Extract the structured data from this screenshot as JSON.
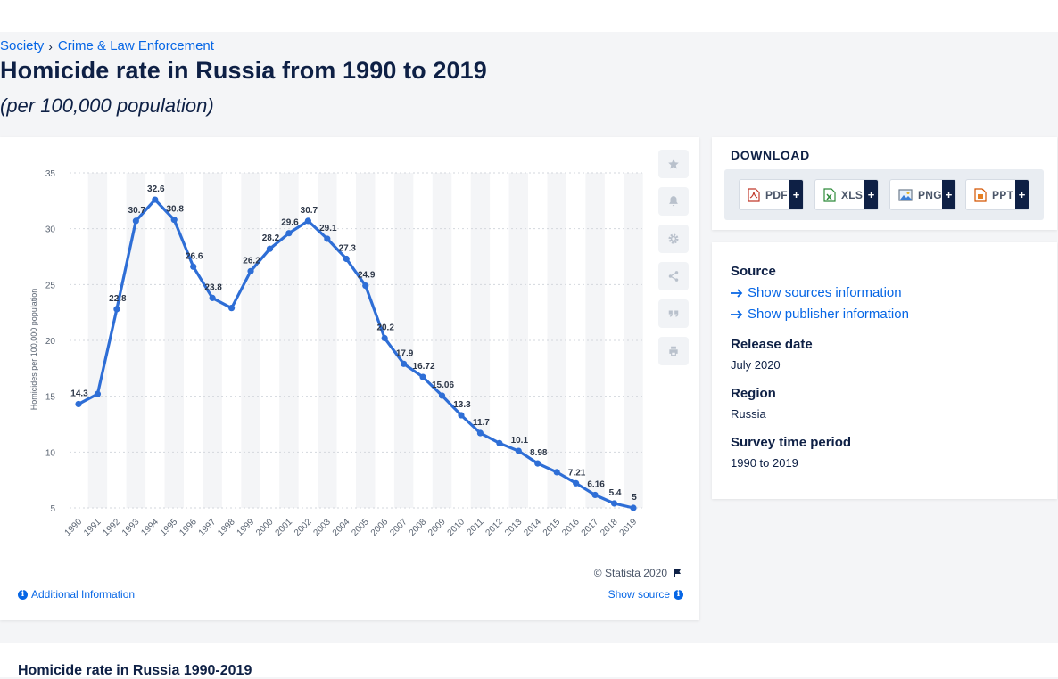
{
  "breadcrumb": {
    "items": [
      "Society",
      "Crime & Law Enforcement"
    ],
    "separator": "›"
  },
  "page": {
    "title": "Homicide rate in Russia from 1990 to 2019",
    "subtitle": "(per 100,000 population)"
  },
  "chart_card": {
    "copyright": "© Statista 2020",
    "additional_info": "Additional Information",
    "show_source": "Show source"
  },
  "toolbar": {
    "icons": [
      "star-icon",
      "bell-icon",
      "gear-icon",
      "share-icon",
      "quote-icon",
      "print-icon"
    ]
  },
  "download": {
    "title": "DOWNLOAD",
    "buttons": [
      {
        "label": "PDF",
        "plus": "+"
      },
      {
        "label": "XLS",
        "plus": "+"
      },
      {
        "label": "PNG",
        "plus": "+"
      },
      {
        "label": "PPT",
        "plus": "+"
      }
    ]
  },
  "info": {
    "source_label": "Source",
    "show_sources": "Show sources information",
    "show_publisher": "Show publisher information",
    "release_label": "Release date",
    "release_value": "July 2020",
    "region_label": "Region",
    "region_value": "Russia",
    "survey_label": "Survey time period",
    "survey_value": "1990 to 2019"
  },
  "bottom": {
    "title": "Homicide rate in Russia 1990-2019"
  },
  "colors": {
    "accent": "#0666e5",
    "line": "#2e6ed6",
    "navy": "#0e2045"
  },
  "chart_data": {
    "type": "line",
    "ylabel": "Homicides per 100,000 population",
    "xlabel": "",
    "ylim": [
      5,
      35
    ],
    "yticks": [
      5,
      10,
      15,
      20,
      25,
      30,
      35
    ],
    "grid": true,
    "x": [
      "1990",
      "1991",
      "1992",
      "1993",
      "1994",
      "1995",
      "1996",
      "1997",
      "1998",
      "1999",
      "2000",
      "2001",
      "2002",
      "2003",
      "2004",
      "2005",
      "2006",
      "2007",
      "2008",
      "2009",
      "2010",
      "2011",
      "2012",
      "2013",
      "2014",
      "2015",
      "2016",
      "2017",
      "2018",
      "2019"
    ],
    "values": [
      14.3,
      15.2,
      22.8,
      30.7,
      32.6,
      30.8,
      26.6,
      23.8,
      22.9,
      26.2,
      28.2,
      29.6,
      30.7,
      29.1,
      27.3,
      24.9,
      20.2,
      17.9,
      16.72,
      15.06,
      13.3,
      11.7,
      10.8,
      10.1,
      8.98,
      8.2,
      7.21,
      6.16,
      5.4,
      5
    ],
    "data_labels": [
      "14.3",
      "",
      "22.8",
      "30.7",
      "32.6",
      "30.8",
      "26.6",
      "23.8",
      "",
      "26.2",
      "28.2",
      "29.6",
      "30.7",
      "29.1",
      "27.3",
      "24.9",
      "20.2",
      "17.9",
      "16.72",
      "15.06",
      "13.3",
      "11.7",
      "",
      "10.1",
      "8.98",
      "",
      "7.21",
      "6.16",
      "5.4",
      "5"
    ]
  }
}
